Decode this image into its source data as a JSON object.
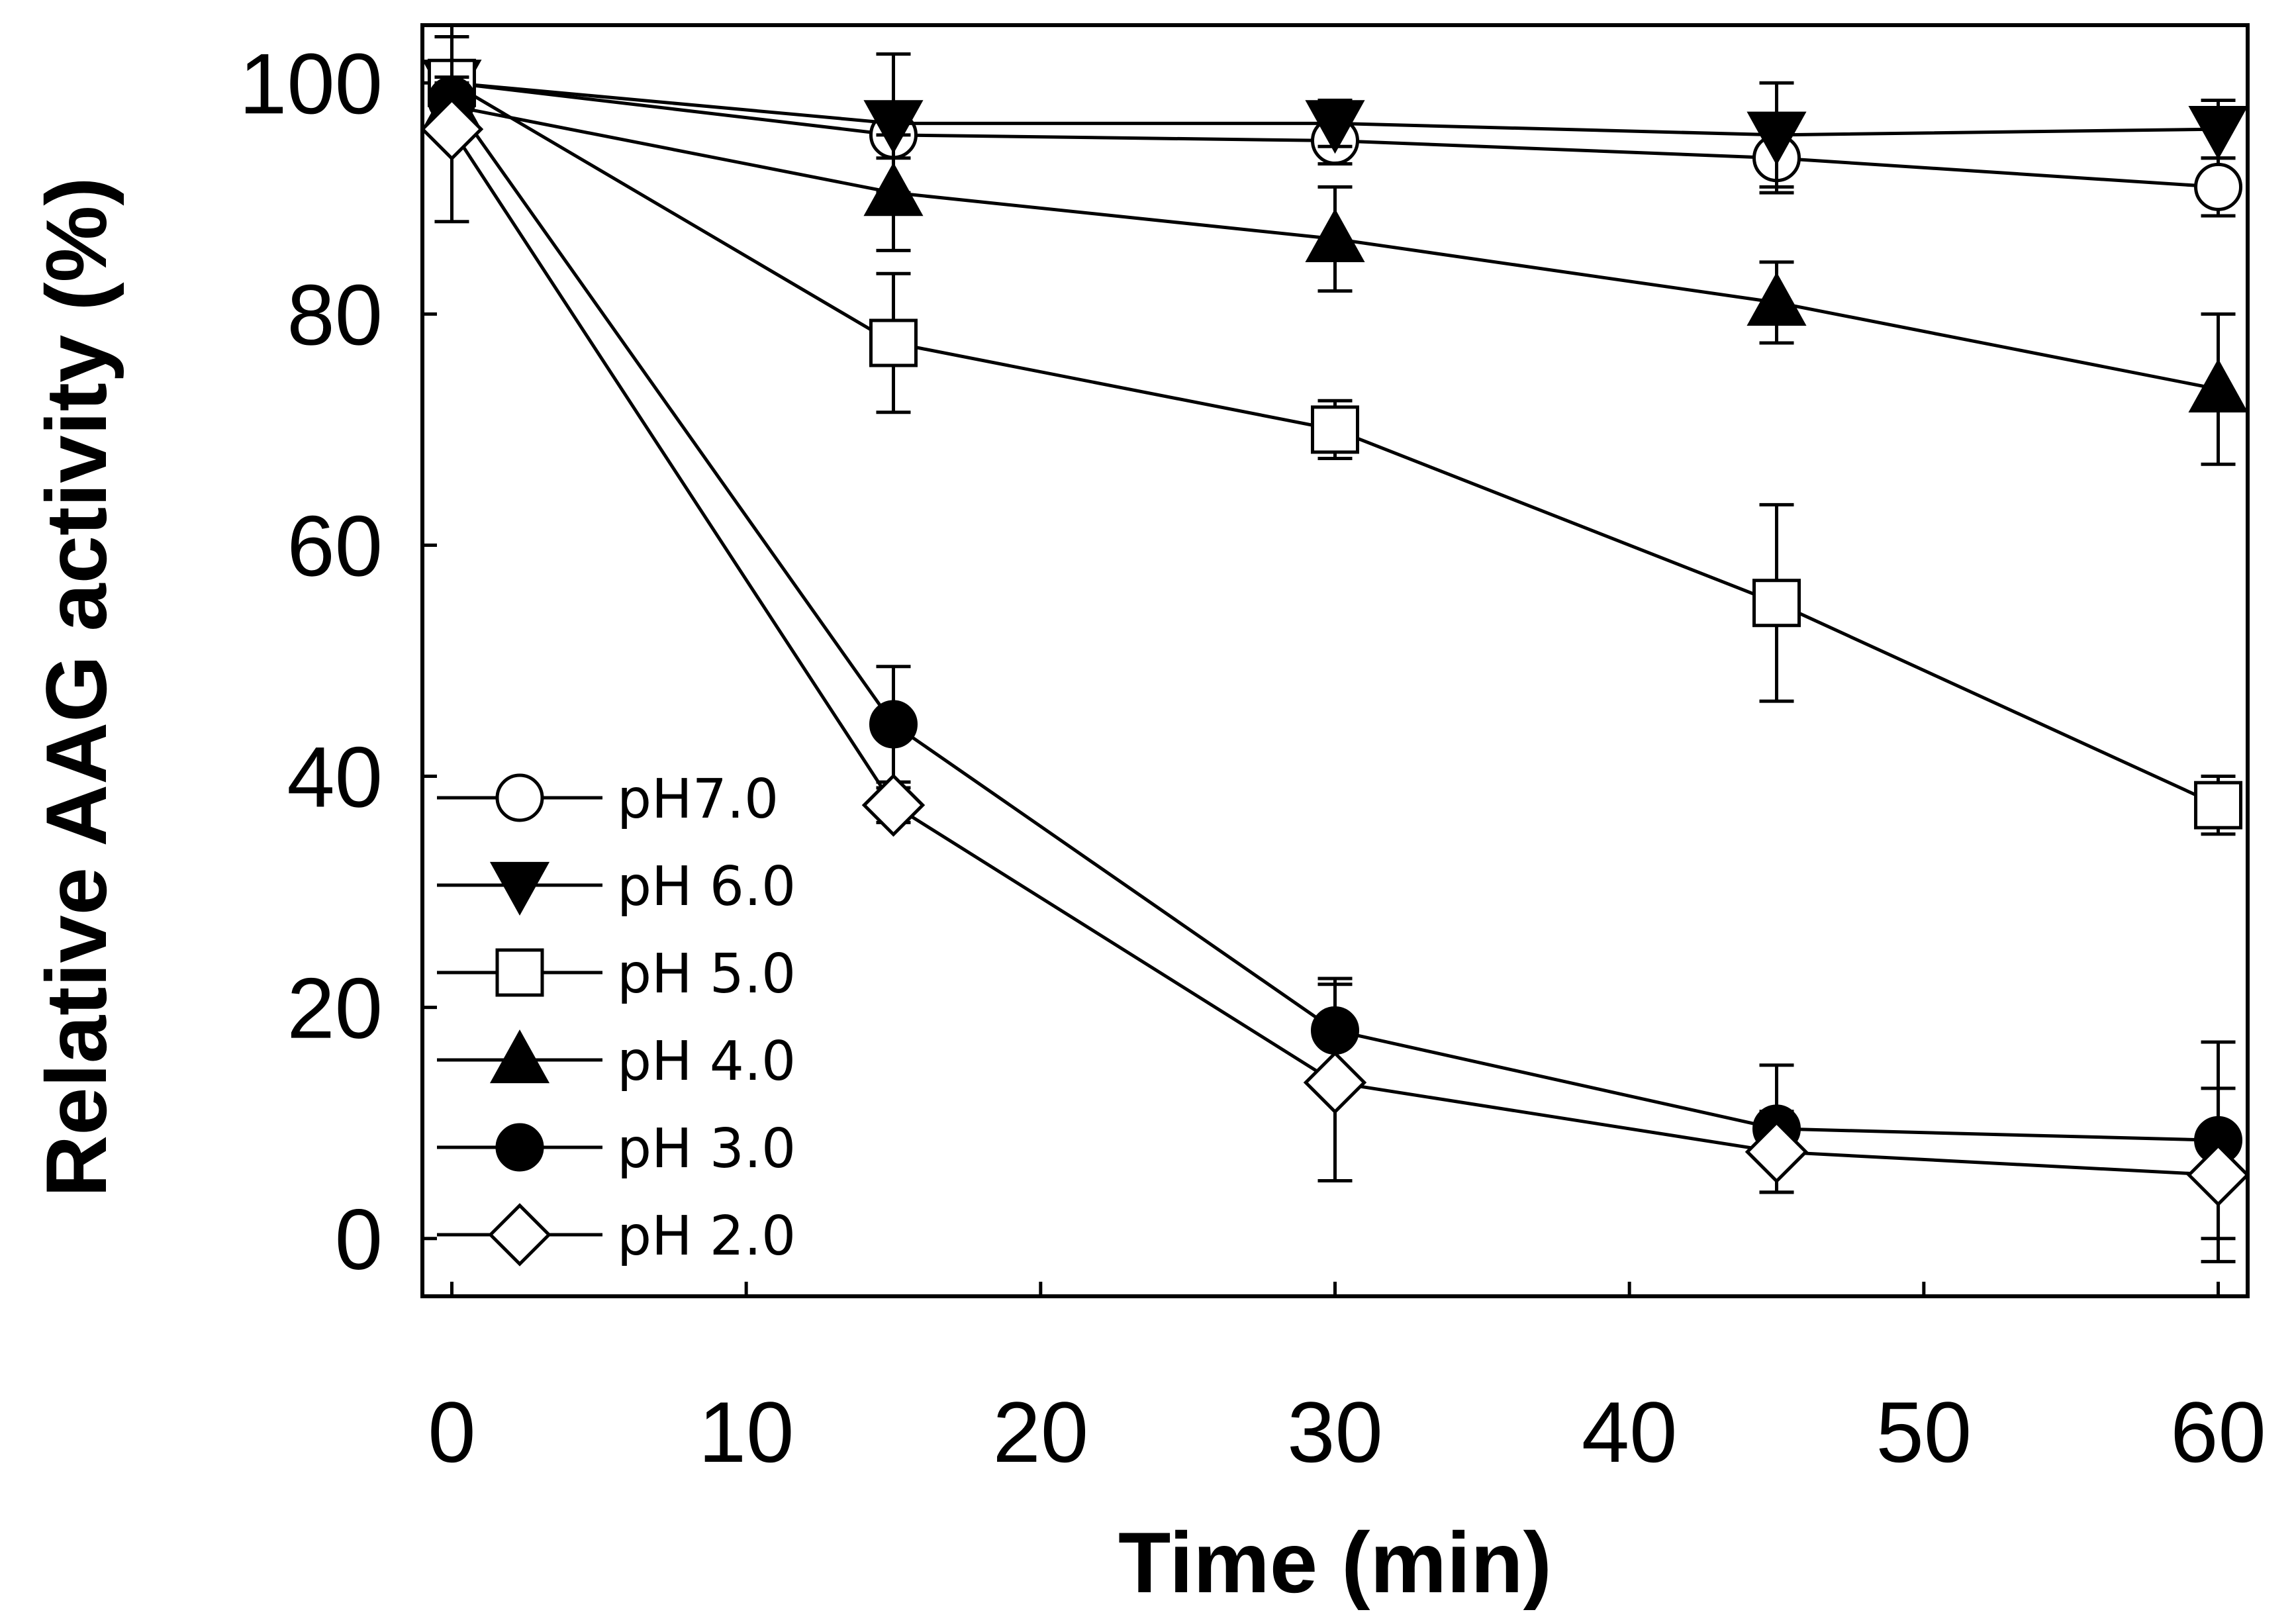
{
  "chart_data": {
    "type": "line",
    "title": "",
    "xlabel": "Time (min)",
    "ylabel": "Relative AAG activity (%)",
    "xlim": [
      -1,
      61
    ],
    "ylim": [
      -5,
      105
    ],
    "xticks": [
      0,
      10,
      20,
      30,
      40,
      50,
      60
    ],
    "yticks": [
      0,
      20,
      40,
      60,
      80,
      100
    ],
    "grid": false,
    "legend_position": "bottom-left",
    "x": [
      0,
      15,
      30,
      45,
      60
    ],
    "series": [
      {
        "name": "pH7.0",
        "marker": "circle-open",
        "values": [
          100,
          95.5,
          95,
          93.5,
          91
        ],
        "errors": [
          1.5,
          2,
          2,
          3,
          2.5
        ]
      },
      {
        "name": "pH 6.0",
        "marker": "triangle-down-filled",
        "values": [
          100,
          96.5,
          96.5,
          95.5,
          96
        ],
        "errors": [
          5,
          6,
          2,
          4.5,
          2.5
        ]
      },
      {
        "name": "pH 5.0",
        "marker": "square-open",
        "values": [
          100,
          77.5,
          70,
          55,
          37.5
        ],
        "errors": [
          1.5,
          6,
          2.5,
          8.5,
          2.5
        ]
      },
      {
        "name": "pH 4.0",
        "marker": "triangle-up-filled",
        "values": [
          98,
          90.5,
          86.5,
          81,
          73.5
        ],
        "errors": [
          2,
          5,
          4.5,
          3.5,
          6.5
        ]
      },
      {
        "name": "pH 3.0",
        "marker": "circle-filled",
        "values": [
          98.5,
          44.5,
          18,
          9.5,
          8.5
        ],
        "errors": [
          2,
          5,
          4.5,
          5.5,
          8.5
        ]
      },
      {
        "name": "pH 2.0",
        "marker": "diamond-open",
        "values": [
          96,
          37.5,
          13.5,
          7.5,
          5.5
        ],
        "errors": [
          8,
          1.5,
          8.5,
          3.5,
          7.5
        ]
      }
    ]
  }
}
